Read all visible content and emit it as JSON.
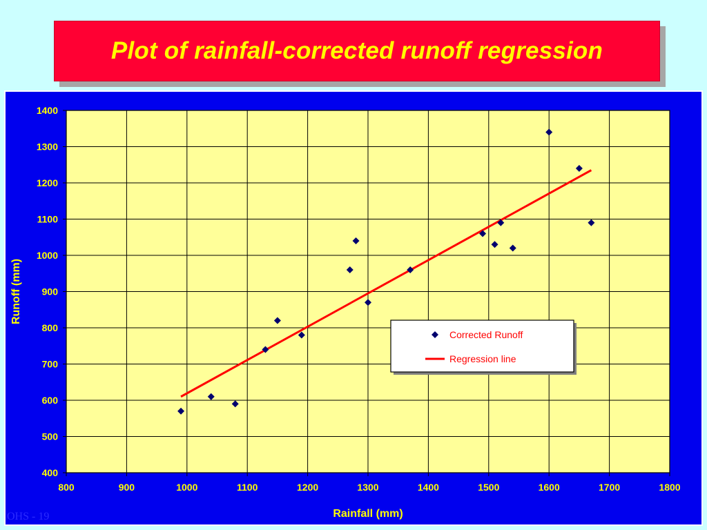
{
  "slide": {
    "title": "Plot of rainfall-corrected runoff regression",
    "footer": "OHS - 19"
  },
  "colors": {
    "background": "#ccffff",
    "title_box": "#ff0033",
    "title_text": "#ffff00",
    "chart_frame": "#0000ee",
    "plot_area": "#ffff99",
    "axis_text": "#ffff00",
    "marker": "#00006e",
    "regression_line": "#ff0000"
  },
  "chart_data": {
    "type": "scatter",
    "title": "",
    "xlabel": "Rainfall (mm)",
    "ylabel": "Runoff (mm)",
    "xlim": [
      800,
      1800
    ],
    "ylim": [
      400,
      1400
    ],
    "xticks": [
      800,
      900,
      1000,
      1100,
      1200,
      1300,
      1400,
      1500,
      1600,
      1700,
      1800
    ],
    "yticks": [
      400,
      500,
      600,
      700,
      800,
      900,
      1000,
      1100,
      1200,
      1300,
      1400
    ],
    "grid": true,
    "legend_position": "center-right",
    "series": [
      {
        "name": "Corrected Runoff",
        "kind": "scatter",
        "marker": "diamond",
        "points": [
          [
            990,
            570
          ],
          [
            1040,
            610
          ],
          [
            1080,
            590
          ],
          [
            1130,
            740
          ],
          [
            1150,
            820
          ],
          [
            1190,
            780
          ],
          [
            1270,
            960
          ],
          [
            1280,
            1040
          ],
          [
            1300,
            870
          ],
          [
            1370,
            960
          ],
          [
            1490,
            1060
          ],
          [
            1510,
            1030
          ],
          [
            1520,
            1090
          ],
          [
            1540,
            1020
          ],
          [
            1600,
            1340
          ],
          [
            1650,
            1240
          ],
          [
            1670,
            1090
          ]
        ]
      },
      {
        "name": "Regression line",
        "kind": "line",
        "points": [
          [
            990,
            610
          ],
          [
            1670,
            1235
          ]
        ]
      }
    ]
  }
}
